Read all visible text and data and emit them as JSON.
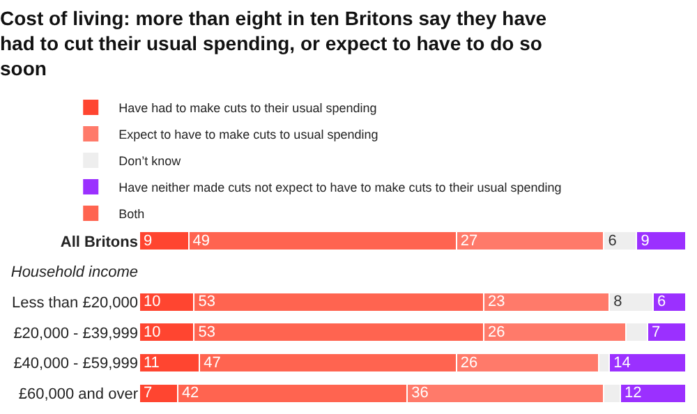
{
  "chart_data": {
    "type": "bar",
    "orientation": "horizontal",
    "stacked": true,
    "title": "Cost of living: more than eight in ten Britons say they have had to cut their usual spending, or expect to have to do so soon",
    "categories": [
      "All Britons",
      "Household income",
      "Less than £20,000",
      "£20,000 - £39,999",
      "£40,000 - £59,999",
      "£60,000 and over"
    ],
    "xlim": [
      0,
      100
    ],
    "tick_labels": "y",
    "grid": false,
    "legend": "top left",
    "series": [
      {
        "name": "Have had to make cuts to their usual spending",
        "color": "#ff4530",
        "values": [
          9,
          null,
          10,
          10,
          11,
          7
        ],
        "value_labels": [
          "9",
          null,
          "10",
          "10",
          "11",
          "7"
        ]
      },
      {
        "name": "Both",
        "color": "#ff6450",
        "values": [
          49,
          null,
          53,
          53,
          47,
          42
        ],
        "value_labels": [
          "49",
          null,
          "53",
          "53",
          "47",
          "42"
        ]
      },
      {
        "name": "Expect to have to make cuts to usual spending",
        "color": "#ff7a6a",
        "values": [
          27,
          null,
          23,
          26,
          26,
          36
        ],
        "value_labels": [
          "27",
          null,
          "23",
          "26",
          "26",
          "36"
        ]
      },
      {
        "name": "Don’t know",
        "color": "#eeeeee",
        "values": [
          6,
          null,
          8,
          4,
          2,
          3
        ],
        "value_labels": [
          "6",
          null,
          "8",
          null,
          null,
          null
        ]
      },
      {
        "name": "Have neither made cuts not expect to have to make cuts to their usual spending",
        "color": "#9b30ff",
        "values": [
          9,
          null,
          6,
          7,
          14,
          12
        ],
        "value_labels": [
          "9",
          null,
          "6",
          "7",
          "14",
          "12"
        ]
      }
    ]
  }
}
